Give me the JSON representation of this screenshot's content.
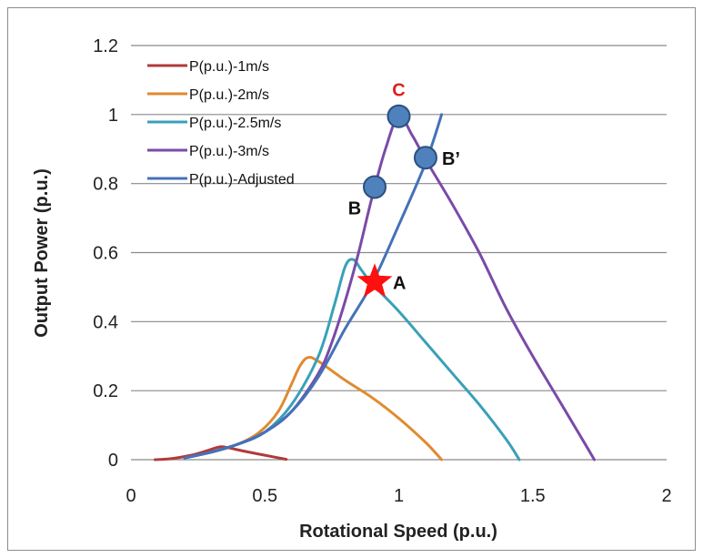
{
  "chart_data": {
    "type": "line",
    "title": "",
    "xlabel": "Rotational Speed (p.u.)",
    "ylabel": "Output Power (p.u.)",
    "xlim": [
      0,
      2
    ],
    "ylim": [
      0,
      1.2
    ],
    "x_ticks": [
      "0",
      "0.5",
      "1",
      "1.5",
      "2"
    ],
    "y_ticks": [
      "0",
      "0.2",
      "0.4",
      "0.6",
      "0.8",
      "1",
      "1.2"
    ],
    "grid": "horizontal",
    "legend_position": "top-left",
    "series": [
      {
        "name": "P(p.u.)-1m/s",
        "color": "#b03a3a",
        "points": [
          [
            0.09,
            0.0
          ],
          [
            0.15,
            0.003
          ],
          [
            0.22,
            0.012
          ],
          [
            0.28,
            0.025
          ],
          [
            0.33,
            0.037
          ],
          [
            0.36,
            0.035
          ],
          [
            0.42,
            0.025
          ],
          [
            0.5,
            0.013
          ],
          [
            0.58,
            0.001
          ]
        ]
      },
      {
        "name": "P(p.u.)-2m/s",
        "color": "#e08a30",
        "points": [
          [
            0.2,
            0.005
          ],
          [
            0.3,
            0.022
          ],
          [
            0.4,
            0.045
          ],
          [
            0.48,
            0.08
          ],
          [
            0.55,
            0.14
          ],
          [
            0.6,
            0.22
          ],
          [
            0.63,
            0.27
          ],
          [
            0.66,
            0.296
          ],
          [
            0.7,
            0.285
          ],
          [
            0.8,
            0.23
          ],
          [
            0.9,
            0.18
          ],
          [
            1.0,
            0.12
          ],
          [
            1.1,
            0.05
          ],
          [
            1.16,
            0.0
          ]
        ]
      },
      {
        "name": "P(p.u.)-2.5m/s",
        "color": "#3aa0b8",
        "points": [
          [
            0.2,
            0.005
          ],
          [
            0.3,
            0.022
          ],
          [
            0.4,
            0.045
          ],
          [
            0.5,
            0.08
          ],
          [
            0.6,
            0.16
          ],
          [
            0.7,
            0.3
          ],
          [
            0.76,
            0.45
          ],
          [
            0.8,
            0.56
          ],
          [
            0.83,
            0.58
          ],
          [
            0.86,
            0.55
          ],
          [
            0.9,
            0.51
          ],
          [
            1.0,
            0.43
          ],
          [
            1.1,
            0.34
          ],
          [
            1.2,
            0.25
          ],
          [
            1.3,
            0.16
          ],
          [
            1.4,
            0.06
          ],
          [
            1.45,
            0.0
          ]
        ]
      },
      {
        "name": "P(p.u.)-3m/s",
        "color": "#7a4aa8",
        "points": [
          [
            0.2,
            0.005
          ],
          [
            0.3,
            0.022
          ],
          [
            0.4,
            0.045
          ],
          [
            0.5,
            0.08
          ],
          [
            0.6,
            0.14
          ],
          [
            0.7,
            0.25
          ],
          [
            0.75,
            0.34
          ],
          [
            0.8,
            0.46
          ],
          [
            0.85,
            0.6
          ],
          [
            0.9,
            0.76
          ],
          [
            0.95,
            0.9
          ],
          [
            1.0,
            0.995
          ],
          [
            1.05,
            0.94
          ],
          [
            1.1,
            0.87
          ],
          [
            1.2,
            0.74
          ],
          [
            1.3,
            0.6
          ],
          [
            1.4,
            0.44
          ],
          [
            1.5,
            0.3
          ],
          [
            1.6,
            0.17
          ],
          [
            1.7,
            0.04
          ],
          [
            1.73,
            0.0
          ]
        ]
      },
      {
        "name": "P(p.u.)-Adjusted",
        "color": "#4472b8",
        "points": [
          [
            0.2,
            0.005
          ],
          [
            0.3,
            0.022
          ],
          [
            0.4,
            0.045
          ],
          [
            0.5,
            0.08
          ],
          [
            0.6,
            0.14
          ],
          [
            0.7,
            0.24
          ],
          [
            0.8,
            0.38
          ],
          [
            0.9,
            0.51
          ],
          [
            1.0,
            0.68
          ],
          [
            1.1,
            0.86
          ],
          [
            1.16,
            1.0
          ]
        ]
      }
    ],
    "annotations": [
      {
        "label": "C",
        "x": 1.0,
        "y": 0.995,
        "marker": "circle",
        "label_color": "#e02020"
      },
      {
        "label": "B’",
        "x": 1.1,
        "y": 0.875,
        "marker": "circle",
        "label_color": "#111111"
      },
      {
        "label": "B",
        "x": 0.91,
        "y": 0.79,
        "marker": "circle",
        "label_color": "#111111"
      },
      {
        "label": "A",
        "x": 0.91,
        "y": 0.515,
        "marker": "star",
        "label_color": "#111111"
      }
    ],
    "marker_colors": {
      "circle_fill": "#4f81bd",
      "circle_stroke": "#2b4f80",
      "star_fill": "#ff1010"
    }
  }
}
